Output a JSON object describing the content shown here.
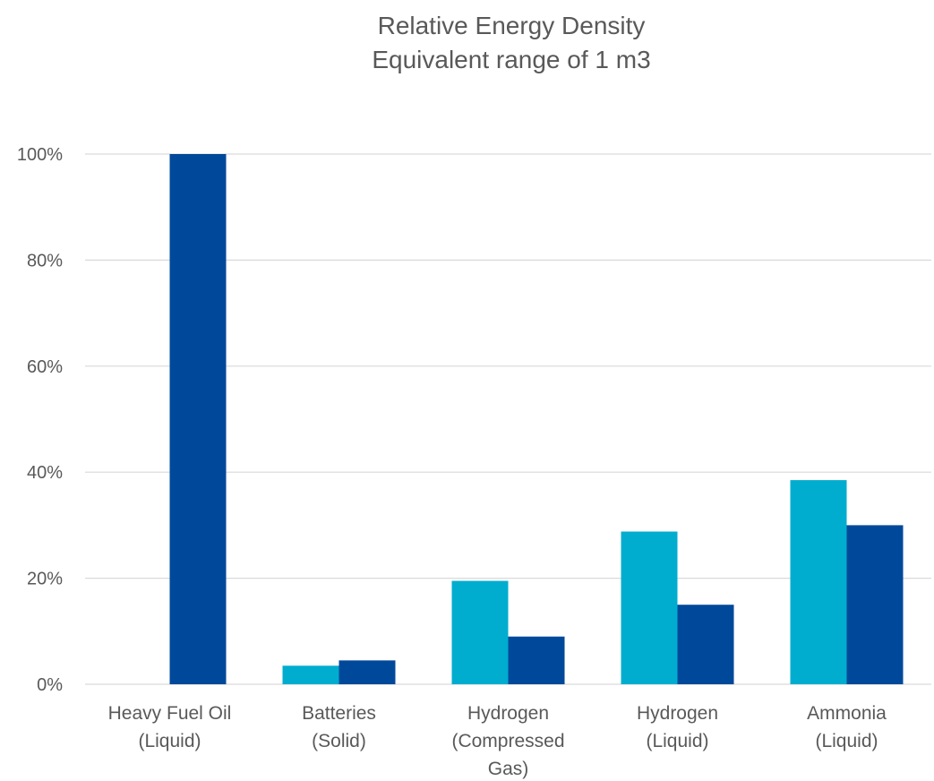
{
  "chart_data": {
    "type": "bar",
    "title": [
      "Relative Energy Density",
      "Equivalent range of 1 m3"
    ],
    "xlabel": "",
    "ylabel": "",
    "ylim": [
      0,
      100
    ],
    "yticks": [
      0,
      20,
      40,
      60,
      80,
      100
    ],
    "ytick_labels": [
      "0%",
      "20%",
      "40%",
      "60%",
      "80%",
      "100%"
    ],
    "grid": true,
    "legend": "none",
    "categories": [
      [
        "Heavy Fuel Oil",
        "(Liquid)"
      ],
      [
        "Batteries",
        "(Solid)"
      ],
      [
        "Hydrogen",
        "(Compressed",
        "Gas)"
      ],
      [
        "Hydrogen",
        "(Liquid)"
      ],
      [
        "Ammonia",
        "(Liquid)"
      ]
    ],
    "series": [
      {
        "color": "#00adcf",
        "values": [
          null,
          3.5,
          19.5,
          28.8,
          38.5
        ]
      },
      {
        "color": "#00499a",
        "values": [
          100,
          4.5,
          9,
          15,
          30
        ]
      }
    ]
  }
}
